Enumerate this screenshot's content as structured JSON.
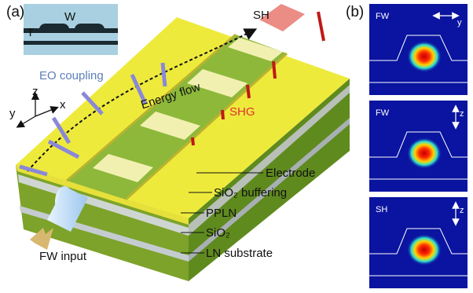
{
  "panel_a": {
    "label": "(a)",
    "inset": {
      "width_label": "W",
      "thickness_label": "T"
    },
    "beams": {
      "second_harmonic": "SH",
      "fundamental_input": "FW input"
    },
    "annotations": {
      "eo_coupling": "EO coupling",
      "energy_flow": "Energy flow",
      "shg": "SHG"
    },
    "axes": {
      "z": "z",
      "x": "x",
      "y": "y"
    },
    "layers": [
      "Electrode",
      "SiO₂ buffering",
      "PPLN",
      "SiO₂",
      "LN substrate"
    ]
  },
  "panel_b": {
    "label": "(b)",
    "modes": [
      {
        "name": "FW",
        "polarization": "y"
      },
      {
        "name": "FW",
        "polarization": "z"
      },
      {
        "name": "SH",
        "polarization": "z"
      }
    ]
  }
}
